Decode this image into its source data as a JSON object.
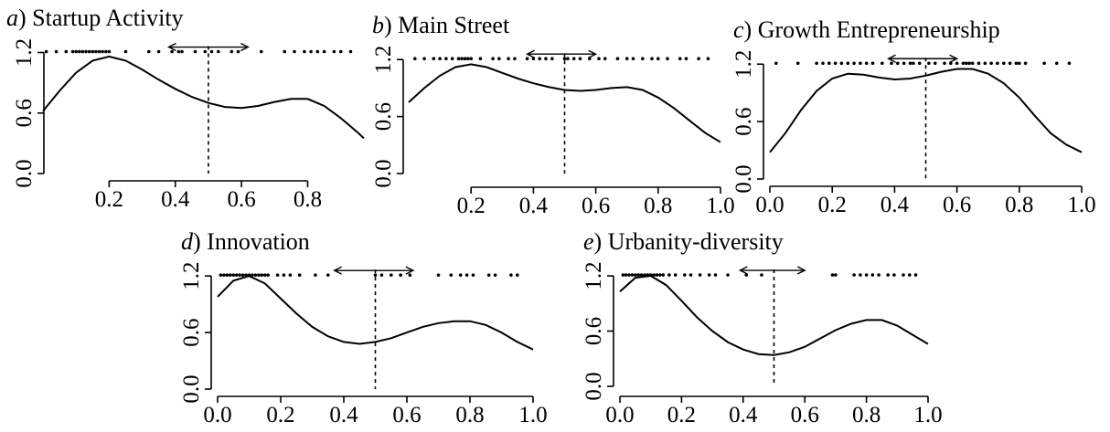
{
  "figure": {
    "panels": [
      {
        "letter": "a",
        "rest": ") Startup Activity"
      },
      {
        "letter": "b",
        "rest": ") Main Street"
      },
      {
        "letter": "c",
        "rest": ") Growth Entrepreneurship"
      },
      {
        "letter": "d",
        "rest": ") Innovation"
      },
      {
        "letter": "e",
        "rest": ") Urbanity-diversity"
      }
    ]
  },
  "chart_data": [
    {
      "type": "line",
      "title": "a) Startup Activity",
      "xlim": [
        0.0,
        0.97
      ],
      "ylim": [
        0.0,
        1.25
      ],
      "xticks": [
        "0.2",
        "0.4",
        "0.6",
        "0.8"
      ],
      "yticks": [
        "0.0",
        "0.6",
        "1.2"
      ],
      "series": [
        {
          "x": [
            0.0,
            0.05,
            0.1,
            0.15,
            0.2,
            0.25,
            0.3,
            0.35,
            0.4,
            0.45,
            0.5,
            0.55,
            0.6,
            0.65,
            0.7,
            0.75,
            0.8,
            0.85,
            0.9,
            0.95,
            0.97
          ],
          "y": [
            0.62,
            0.82,
            1.0,
            1.12,
            1.16,
            1.12,
            1.03,
            0.93,
            0.84,
            0.76,
            0.7,
            0.66,
            0.65,
            0.67,
            0.71,
            0.74,
            0.74,
            0.67,
            0.55,
            0.41,
            0.35
          ]
        }
      ],
      "threshold": 0.5,
      "interval": [
        0.38,
        0.62
      ],
      "rug": [
        0.01,
        0.04,
        0.07,
        0.09,
        0.1,
        0.11,
        0.12,
        0.13,
        0.14,
        0.15,
        0.16,
        0.17,
        0.18,
        0.19,
        0.2,
        0.25,
        0.32,
        0.35,
        0.39,
        0.41,
        0.42,
        0.46,
        0.49,
        0.51,
        0.53,
        0.57,
        0.59,
        0.66,
        0.73,
        0.76,
        0.79,
        0.81,
        0.83,
        0.85,
        0.88,
        0.9,
        0.93
      ]
    },
    {
      "type": "line",
      "title": "b) Main Street",
      "xlim": [
        0.0,
        1.0
      ],
      "ylim": [
        0.0,
        1.25
      ],
      "xticks": [
        "0.2",
        "0.4",
        "0.6",
        "0.8",
        "1.0"
      ],
      "yticks": [
        "0.0",
        "0.6",
        "1.2"
      ],
      "series": [
        {
          "x": [
            0.0,
            0.05,
            0.1,
            0.15,
            0.2,
            0.25,
            0.3,
            0.35,
            0.4,
            0.45,
            0.5,
            0.55,
            0.6,
            0.65,
            0.7,
            0.75,
            0.8,
            0.85,
            0.9,
            0.95,
            1.0
          ],
          "y": [
            0.75,
            0.9,
            1.03,
            1.12,
            1.15,
            1.12,
            1.06,
            1.0,
            0.95,
            0.91,
            0.88,
            0.87,
            0.88,
            0.9,
            0.91,
            0.88,
            0.8,
            0.69,
            0.56,
            0.43,
            0.33
          ]
        }
      ],
      "threshold": 0.5,
      "interval": [
        0.38,
        0.6
      ],
      "rug": [
        0.02,
        0.05,
        0.08,
        0.1,
        0.12,
        0.14,
        0.16,
        0.17,
        0.18,
        0.19,
        0.2,
        0.23,
        0.27,
        0.29,
        0.32,
        0.34,
        0.38,
        0.4,
        0.42,
        0.44,
        0.46,
        0.5,
        0.51,
        0.53,
        0.55,
        0.58,
        0.61,
        0.63,
        0.67,
        0.7,
        0.72,
        0.75,
        0.78,
        0.8,
        0.83,
        0.87,
        0.89,
        0.93,
        0.96
      ]
    },
    {
      "type": "line",
      "title": "c) Growth Entrepreneurship",
      "xlim": [
        0.0,
        1.0
      ],
      "ylim": [
        0.0,
        1.25
      ],
      "xticks": [
        "0.0",
        "0.2",
        "0.4",
        "0.6",
        "0.8",
        "1.0"
      ],
      "yticks": [
        "0.0",
        "0.6",
        "1.2"
      ],
      "series": [
        {
          "x": [
            0.0,
            0.05,
            0.1,
            0.15,
            0.2,
            0.25,
            0.3,
            0.35,
            0.4,
            0.45,
            0.5,
            0.55,
            0.6,
            0.65,
            0.7,
            0.75,
            0.8,
            0.85,
            0.9,
            0.95,
            1.0
          ],
          "y": [
            0.28,
            0.48,
            0.72,
            0.92,
            1.05,
            1.1,
            1.09,
            1.06,
            1.04,
            1.05,
            1.08,
            1.12,
            1.15,
            1.15,
            1.1,
            1.0,
            0.85,
            0.66,
            0.48,
            0.36,
            0.28
          ]
        }
      ],
      "threshold": 0.5,
      "interval": [
        0.38,
        0.6
      ],
      "rug": [
        0.02,
        0.09,
        0.15,
        0.17,
        0.19,
        0.21,
        0.23,
        0.25,
        0.27,
        0.29,
        0.31,
        0.33,
        0.36,
        0.39,
        0.41,
        0.43,
        0.45,
        0.46,
        0.48,
        0.51,
        0.53,
        0.56,
        0.58,
        0.6,
        0.62,
        0.63,
        0.64,
        0.65,
        0.67,
        0.69,
        0.71,
        0.73,
        0.75,
        0.77,
        0.79,
        0.8,
        0.82,
        0.88,
        0.92,
        0.96
      ]
    },
    {
      "type": "line",
      "title": "d) Innovation",
      "xlim": [
        0.0,
        1.0
      ],
      "ylim": [
        0.0,
        1.25
      ],
      "xticks": [
        "0.0",
        "0.2",
        "0.4",
        "0.6",
        "0.8",
        "1.0"
      ],
      "yticks": [
        "0.0",
        "0.6",
        "1.2"
      ],
      "series": [
        {
          "x": [
            0.0,
            0.05,
            0.1,
            0.15,
            0.2,
            0.25,
            0.3,
            0.35,
            0.4,
            0.45,
            0.5,
            0.55,
            0.6,
            0.65,
            0.7,
            0.75,
            0.8,
            0.85,
            0.9,
            0.95,
            1.0
          ],
          "y": [
            0.98,
            1.15,
            1.2,
            1.12,
            0.96,
            0.8,
            0.66,
            0.56,
            0.5,
            0.48,
            0.5,
            0.54,
            0.6,
            0.66,
            0.7,
            0.72,
            0.72,
            0.68,
            0.6,
            0.5,
            0.42
          ]
        }
      ],
      "threshold": 0.5,
      "interval": [
        0.37,
        0.62
      ],
      "rug": [
        0.01,
        0.02,
        0.03,
        0.04,
        0.05,
        0.06,
        0.07,
        0.08,
        0.09,
        0.1,
        0.11,
        0.12,
        0.13,
        0.14,
        0.15,
        0.16,
        0.19,
        0.21,
        0.23,
        0.26,
        0.31,
        0.35,
        0.5,
        0.52,
        0.55,
        0.58,
        0.61,
        0.7,
        0.74,
        0.77,
        0.79,
        0.81,
        0.86,
        0.88,
        0.93,
        0.95
      ]
    },
    {
      "type": "line",
      "title": "e) Urbanity-diversity",
      "xlim": [
        0.0,
        1.0
      ],
      "ylim": [
        0.0,
        1.25
      ],
      "xticks": [
        "0.0",
        "0.2",
        "0.4",
        "0.6",
        "0.8",
        "1.0"
      ],
      "yticks": [
        "0.0",
        "0.6",
        "1.2"
      ],
      "series": [
        {
          "x": [
            0.0,
            0.05,
            0.1,
            0.15,
            0.2,
            0.25,
            0.3,
            0.35,
            0.4,
            0.45,
            0.5,
            0.55,
            0.6,
            0.65,
            0.7,
            0.75,
            0.8,
            0.85,
            0.9,
            0.95,
            1.0
          ],
          "y": [
            1.03,
            1.18,
            1.2,
            1.1,
            0.93,
            0.75,
            0.6,
            0.48,
            0.4,
            0.35,
            0.34,
            0.37,
            0.43,
            0.52,
            0.61,
            0.68,
            0.72,
            0.72,
            0.66,
            0.56,
            0.46
          ]
        }
      ],
      "threshold": 0.5,
      "interval": [
        0.39,
        0.6
      ],
      "rug": [
        0.01,
        0.02,
        0.03,
        0.04,
        0.05,
        0.06,
        0.07,
        0.08,
        0.09,
        0.1,
        0.11,
        0.12,
        0.13,
        0.14,
        0.16,
        0.18,
        0.21,
        0.23,
        0.26,
        0.29,
        0.31,
        0.35,
        0.41,
        0.46,
        0.69,
        0.7,
        0.76,
        0.78,
        0.8,
        0.82,
        0.84,
        0.87,
        0.89,
        0.92,
        0.94,
        0.96
      ]
    }
  ]
}
